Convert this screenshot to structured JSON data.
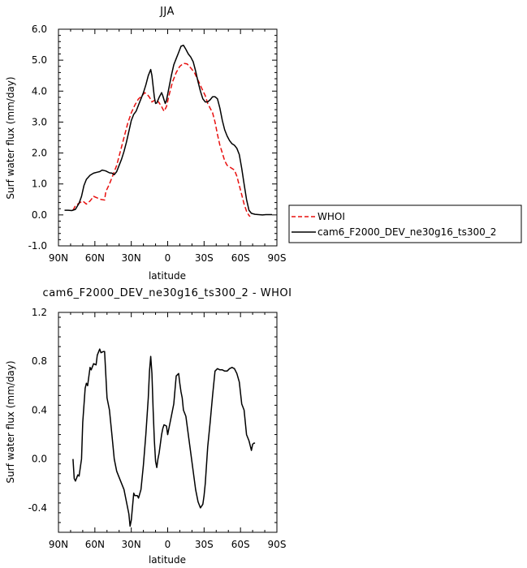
{
  "chart_data": [
    {
      "type": "line",
      "title": "JJA",
      "xlabel": "latitude",
      "ylabel": "Surf water flux (mm/day)",
      "xlim": [
        90,
        -90
      ],
      "ylim": [
        -1.0,
        6.0
      ],
      "x_ticks": [
        90,
        60,
        30,
        0,
        -30,
        -60,
        -90
      ],
      "x_tick_labels": [
        "90N",
        "60N",
        "30N",
        "0",
        "30S",
        "60S",
        "90S"
      ],
      "y_ticks": [
        -1.0,
        0.0,
        1.0,
        2.0,
        3.0,
        4.0,
        5.0,
        6.0
      ],
      "y_tick_labels": [
        "-1.0",
        "0.0",
        "1.0",
        "2.0",
        "3.0",
        "4.0",
        "5.0",
        "6.0"
      ],
      "grid": false,
      "legend": "right",
      "series": [
        {
          "name": "WHOI",
          "color": "#e8100f",
          "dash": "dashed",
          "points": [
            [
              78,
              0.15
            ],
            [
              76,
              0.3
            ],
            [
              73,
              0.38
            ],
            [
              70,
              0.45
            ],
            [
              67,
              0.35
            ],
            [
              64,
              0.45
            ],
            [
              61,
              0.6
            ],
            [
              58,
              0.55
            ],
            [
              55,
              0.5
            ],
            [
              52,
              0.48
            ],
            [
              51,
              0.75
            ],
            [
              48,
              1.0
            ],
            [
              45,
              1.3
            ],
            [
              42,
              1.6
            ],
            [
              39,
              2.05
            ],
            [
              36,
              2.5
            ],
            [
              33,
              2.95
            ],
            [
              30,
              3.3
            ],
            [
              27,
              3.55
            ],
            [
              24,
              3.75
            ],
            [
              21,
              3.85
            ],
            [
              19,
              3.95
            ],
            [
              17,
              3.9
            ],
            [
              15,
              3.8
            ],
            [
              13,
              3.65
            ],
            [
              11,
              3.7
            ],
            [
              9,
              3.72
            ],
            [
              7,
              3.62
            ],
            [
              5,
              3.5
            ],
            [
              3,
              3.35
            ],
            [
              1,
              3.5
            ],
            [
              -1,
              3.85
            ],
            [
              -4,
              4.3
            ],
            [
              -7,
              4.6
            ],
            [
              -10,
              4.8
            ],
            [
              -13,
              4.9
            ],
            [
              -16,
              4.88
            ],
            [
              -19,
              4.75
            ],
            [
              -22,
              4.6
            ],
            [
              -25,
              4.35
            ],
            [
              -28,
              4.1
            ],
            [
              -31,
              3.85
            ],
            [
              -33,
              3.6
            ],
            [
              -35,
              3.45
            ],
            [
              -37,
              3.3
            ],
            [
              -39,
              3.0
            ],
            [
              -41,
              2.6
            ],
            [
              -43,
              2.25
            ],
            [
              -45,
              2.0
            ],
            [
              -47,
              1.75
            ],
            [
              -49,
              1.6
            ],
            [
              -51,
              1.55
            ],
            [
              -53,
              1.5
            ],
            [
              -55,
              1.45
            ],
            [
              -57,
              1.25
            ],
            [
              -59,
              0.95
            ],
            [
              -61,
              0.65
            ],
            [
              -63,
              0.35
            ],
            [
              -65,
              0.12
            ],
            [
              -67,
              -0.02
            ],
            [
              -68,
              -0.05
            ]
          ]
        },
        {
          "name": "cam6_F2000_DEV_ne30g16_ts300_2",
          "color": "#000000",
          "dash": "solid",
          "points": [
            [
              85,
              0.15
            ],
            [
              82,
              0.15
            ],
            [
              79,
              0.14
            ],
            [
              76,
              0.18
            ],
            [
              73,
              0.38
            ],
            [
              71,
              0.6
            ],
            [
              69,
              0.95
            ],
            [
              67,
              1.15
            ],
            [
              64,
              1.28
            ],
            [
              61,
              1.35
            ],
            [
              58,
              1.38
            ],
            [
              56,
              1.4
            ],
            [
              54,
              1.45
            ],
            [
              51,
              1.42
            ],
            [
              48,
              1.36
            ],
            [
              46,
              1.35
            ],
            [
              44,
              1.3
            ],
            [
              42,
              1.4
            ],
            [
              40,
              1.6
            ],
            [
              38,
              1.8
            ],
            [
              36,
              2.05
            ],
            [
              34,
              2.35
            ],
            [
              32,
              2.7
            ],
            [
              30,
              3.05
            ],
            [
              28,
              3.25
            ],
            [
              26,
              3.35
            ],
            [
              24,
              3.55
            ],
            [
              22,
              3.75
            ],
            [
              20,
              3.95
            ],
            [
              18,
              4.2
            ],
            [
              16,
              4.5
            ],
            [
              14,
              4.7
            ],
            [
              13,
              4.5
            ],
            [
              12,
              4.15
            ],
            [
              11,
              3.8
            ],
            [
              10,
              3.6
            ],
            [
              9,
              3.62
            ],
            [
              7,
              3.8
            ],
            [
              5,
              3.95
            ],
            [
              4,
              3.85
            ],
            [
              3,
              3.72
            ],
            [
              2,
              3.6
            ],
            [
              1,
              3.7
            ],
            [
              -1,
              4.1
            ],
            [
              -3,
              4.5
            ],
            [
              -5,
              4.85
            ],
            [
              -7,
              5.05
            ],
            [
              -9,
              5.25
            ],
            [
              -11,
              5.45
            ],
            [
              -13,
              5.48
            ],
            [
              -15,
              5.35
            ],
            [
              -17,
              5.2
            ],
            [
              -19,
              5.1
            ],
            [
              -21,
              4.95
            ],
            [
              -23,
              4.65
            ],
            [
              -25,
              4.3
            ],
            [
              -27,
              4.0
            ],
            [
              -29,
              3.75
            ],
            [
              -31,
              3.65
            ],
            [
              -33,
              3.65
            ],
            [
              -35,
              3.72
            ],
            [
              -37,
              3.82
            ],
            [
              -39,
              3.82
            ],
            [
              -41,
              3.75
            ],
            [
              -43,
              3.45
            ],
            [
              -45,
              3.05
            ],
            [
              -47,
              2.75
            ],
            [
              -49,
              2.55
            ],
            [
              -51,
              2.4
            ],
            [
              -53,
              2.3
            ],
            [
              -55,
              2.25
            ],
            [
              -57,
              2.15
            ],
            [
              -59,
              1.95
            ],
            [
              -61,
              1.5
            ],
            [
              -63,
              1.0
            ],
            [
              -65,
              0.5
            ],
            [
              -67,
              0.15
            ],
            [
              -69,
              0.05
            ],
            [
              -72,
              0.02
            ],
            [
              -75,
              0.01
            ],
            [
              -78,
              0.0
            ],
            [
              -81,
              0.01
            ],
            [
              -84,
              0.01
            ],
            [
              -86,
              0.01
            ]
          ]
        }
      ]
    },
    {
      "type": "line",
      "title": "cam6_F2000_DEV_ne30g16_ts300_2 - WHOI",
      "xlabel": "latitude",
      "ylabel": "Surf water flux (mm/day)",
      "xlim": [
        90,
        -90
      ],
      "ylim": [
        -0.6,
        1.2
      ],
      "x_ticks": [
        90,
        60,
        30,
        0,
        -30,
        -60,
        -90
      ],
      "x_tick_labels": [
        "90N",
        "60N",
        "30N",
        "0",
        "30S",
        "60S",
        "90S"
      ],
      "y_ticks": [
        -0.4,
        0.0,
        0.4,
        0.8,
        1.2
      ],
      "y_tick_labels": [
        "-0.4",
        "0.0",
        "0.4",
        "0.8",
        "1.2"
      ],
      "grid": false,
      "series": [
        {
          "name": "",
          "color": "#000000",
          "dash": "solid",
          "points": [
            [
              78,
              0.0
            ],
            [
              77,
              -0.16
            ],
            [
              76,
              -0.18
            ],
            [
              74,
              -0.13
            ],
            [
              73,
              -0.14
            ],
            [
              71,
              0.0
            ],
            [
              70,
              0.3
            ],
            [
              68,
              0.58
            ],
            [
              67,
              0.62
            ],
            [
              66,
              0.6
            ],
            [
              64,
              0.75
            ],
            [
              63,
              0.73
            ],
            [
              61,
              0.78
            ],
            [
              59,
              0.77
            ],
            [
              58,
              0.85
            ],
            [
              56,
              0.9
            ],
            [
              55,
              0.87
            ],
            [
              53,
              0.88
            ],
            [
              52,
              0.88
            ],
            [
              50,
              0.5
            ],
            [
              48,
              0.4
            ],
            [
              46,
              0.2
            ],
            [
              44,
              0.0
            ],
            [
              42,
              -0.1
            ],
            [
              40,
              -0.15
            ],
            [
              38,
              -0.2
            ],
            [
              36,
              -0.25
            ],
            [
              34,
              -0.35
            ],
            [
              32,
              -0.45
            ],
            [
              31,
              -0.55
            ],
            [
              30,
              -0.5
            ],
            [
              28,
              -0.28
            ],
            [
              27,
              -0.3
            ],
            [
              25,
              -0.3
            ],
            [
              24,
              -0.32
            ],
            [
              22,
              -0.25
            ],
            [
              20,
              -0.05
            ],
            [
              18,
              0.2
            ],
            [
              16,
              0.5
            ],
            [
              15,
              0.72
            ],
            [
              14,
              0.84
            ],
            [
              13,
              0.7
            ],
            [
              12,
              0.4
            ],
            [
              11,
              0.15
            ],
            [
              10,
              -0.02
            ],
            [
              9,
              -0.07
            ],
            [
              8,
              0.0
            ],
            [
              7,
              0.05
            ],
            [
              5,
              0.2
            ],
            [
              4,
              0.25
            ],
            [
              3,
              0.28
            ],
            [
              1,
              0.27
            ],
            [
              0,
              0.2
            ],
            [
              -1,
              0.25
            ],
            [
              -3,
              0.35
            ],
            [
              -5,
              0.45
            ],
            [
              -7,
              0.68
            ],
            [
              -9,
              0.7
            ],
            [
              -10,
              0.62
            ],
            [
              -11,
              0.55
            ],
            [
              -12,
              0.5
            ],
            [
              -13,
              0.4
            ],
            [
              -15,
              0.35
            ],
            [
              -17,
              0.2
            ],
            [
              -19,
              0.05
            ],
            [
              -21,
              -0.1
            ],
            [
              -23,
              -0.25
            ],
            [
              -25,
              -0.35
            ],
            [
              -27,
              -0.4
            ],
            [
              -29,
              -0.37
            ],
            [
              -30,
              -0.3
            ],
            [
              -31,
              -0.2
            ],
            [
              -33,
              0.1
            ],
            [
              -35,
              0.3
            ],
            [
              -37,
              0.52
            ],
            [
              -39,
              0.72
            ],
            [
              -41,
              0.74
            ],
            [
              -43,
              0.73
            ],
            [
              -45,
              0.73
            ],
            [
              -47,
              0.72
            ],
            [
              -49,
              0.72
            ],
            [
              -51,
              0.74
            ],
            [
              -53,
              0.75
            ],
            [
              -55,
              0.74
            ],
            [
              -57,
              0.7
            ],
            [
              -59,
              0.63
            ],
            [
              -61,
              0.45
            ],
            [
              -63,
              0.4
            ],
            [
              -65,
              0.2
            ],
            [
              -67,
              0.15
            ],
            [
              -69,
              0.07
            ],
            [
              -70,
              0.12
            ],
            [
              -71,
              0.13
            ],
            [
              -72,
              0.13
            ]
          ]
        }
      ]
    }
  ]
}
